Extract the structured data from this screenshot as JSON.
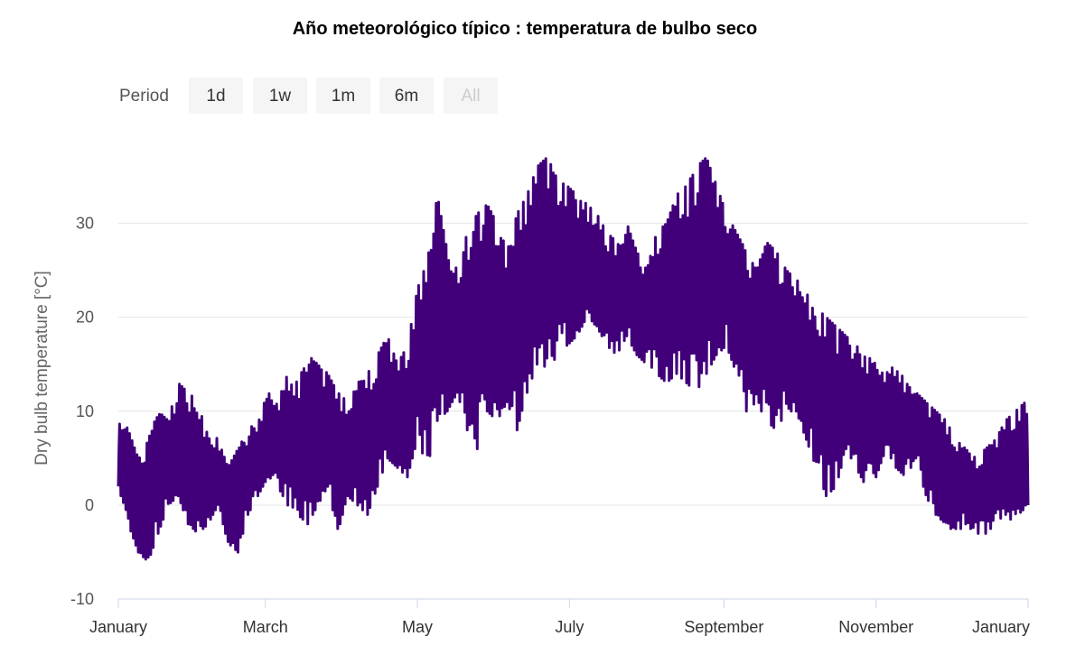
{
  "chart_data": {
    "type": "line",
    "title": "Año meteorológico típico : temperatura de bulbo seco",
    "ylabel": "Dry bulb temperature [°C]",
    "xlabel": "",
    "ylim": [
      -10,
      38
    ],
    "xlim": [
      0,
      365
    ],
    "y_ticks": [
      -10,
      0,
      10,
      20,
      30
    ],
    "y_tick_labels": [
      "-10",
      "0",
      "10",
      "20",
      "30"
    ],
    "x_ticks": [
      0,
      59,
      120,
      181,
      243,
      304,
      365
    ],
    "x_tick_labels": [
      "January",
      "March",
      "May",
      "July",
      "September",
      "November",
      "January"
    ],
    "grid": true,
    "legend": "none",
    "range_selector": {
      "label": "Period",
      "buttons": [
        "1d",
        "1w",
        "1m",
        "6m",
        "All"
      ],
      "selected": "All"
    },
    "series": [
      {
        "name": "Dry bulb temperature",
        "color": "#41007a",
        "x": [
          0,
          4,
          8,
          12,
          16,
          20,
          24,
          28,
          32,
          36,
          40,
          44,
          48,
          52,
          56,
          60,
          64,
          68,
          72,
          76,
          80,
          84,
          88,
          92,
          96,
          100,
          104,
          108,
          112,
          116,
          120,
          124,
          128,
          132,
          136,
          140,
          144,
          148,
          152,
          156,
          160,
          164,
          168,
          172,
          176,
          180,
          184,
          188,
          192,
          196,
          200,
          204,
          208,
          212,
          216,
          220,
          224,
          228,
          232,
          236,
          240,
          244,
          248,
          252,
          256,
          260,
          264,
          268,
          272,
          276,
          280,
          284,
          288,
          292,
          296,
          300,
          304,
          308,
          312,
          316,
          320,
          324,
          328,
          332,
          336,
          340,
          344,
          348,
          352,
          356,
          360,
          364
        ],
        "daily_min": [
          2,
          -2,
          -5,
          -6,
          -3,
          0,
          1,
          -2,
          -3,
          -2,
          0,
          -4,
          -5,
          -1,
          1,
          3,
          2,
          0,
          -1,
          -2,
          0,
          2,
          -3,
          1,
          0,
          -1,
          2,
          5,
          4,
          3,
          7,
          4,
          9,
          10,
          12,
          8,
          6,
          10,
          9,
          11,
          8,
          12,
          15,
          14,
          16,
          17,
          18,
          20,
          19,
          17,
          16,
          18,
          16,
          15,
          14,
          13,
          14,
          13,
          12,
          14,
          16,
          17,
          14,
          10,
          11,
          9,
          8,
          10,
          10,
          7,
          4,
          1,
          2,
          6,
          4,
          2,
          3,
          6,
          4,
          3,
          5,
          1,
          -1,
          -2,
          -3,
          -2,
          -3,
          -3,
          -2,
          -1,
          -2,
          0
        ],
        "daily_max": [
          10,
          8,
          5,
          7,
          10,
          9,
          13,
          12,
          11,
          8,
          7,
          4,
          6,
          8,
          9,
          12,
          11,
          14,
          13,
          16,
          15,
          14,
          12,
          11,
          13,
          14,
          16,
          18,
          15,
          17,
          23,
          26,
          33,
          27,
          25,
          29,
          31,
          32,
          30,
          27,
          31,
          33,
          36,
          37,
          35,
          34,
          33,
          32,
          31,
          29,
          28,
          30,
          27,
          25,
          29,
          30,
          33,
          34,
          36,
          37,
          34,
          31,
          29,
          27,
          25,
          28,
          27,
          25,
          24,
          23,
          21,
          20,
          19,
          18,
          17,
          16,
          15,
          14,
          15,
          13,
          12,
          11,
          10,
          9,
          7,
          6,
          5,
          6,
          7,
          9,
          10,
          11
        ]
      }
    ]
  }
}
